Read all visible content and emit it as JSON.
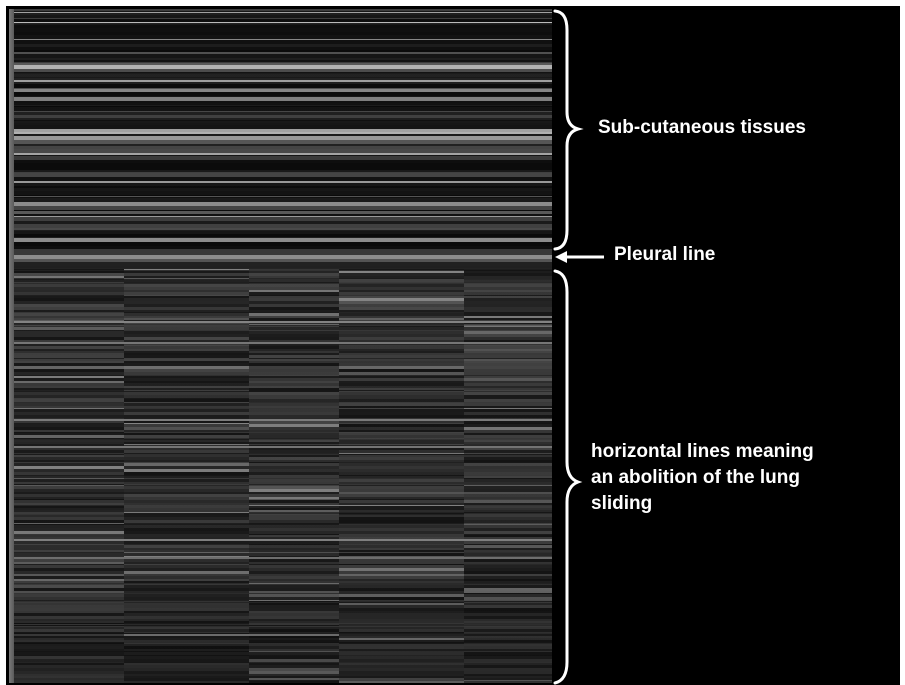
{
  "annotations": {
    "subcutaneous": "Sub-cutaneous tissues",
    "pleural_line": "Pleural line",
    "horizontal_lines": [
      "horizontal lines meaning",
      "an abolition of the lung",
      "sliding"
    ]
  },
  "image": {
    "description_icon": "m-mode-ultrasound-image",
    "colors": {
      "background": "#000000",
      "frame": "#ffffff",
      "annotation": "#ffffff"
    }
  }
}
